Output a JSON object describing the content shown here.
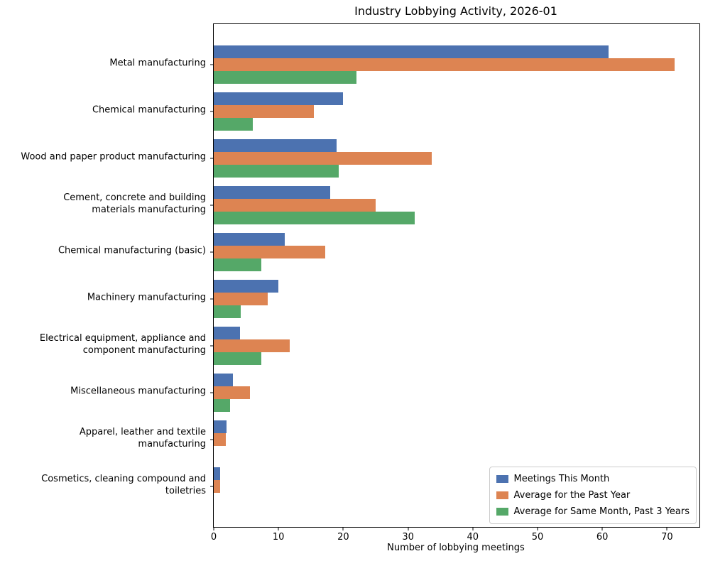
{
  "title": "Industry Lobbying Activity, 2026-01",
  "chart_data": {
    "type": "bar",
    "orientation": "horizontal",
    "title": "Industry Lobbying Activity, 2026-01",
    "xlabel": "Number of lobbying meetings",
    "ylabel": "",
    "xlim": [
      0,
      75
    ],
    "xticks": [
      0,
      10,
      20,
      30,
      40,
      50,
      60,
      70
    ],
    "grid": false,
    "legend_position": "lower right",
    "background_color": "#ffffff",
    "categories": [
      "Metal manufacturing",
      "Chemical manufacturing",
      "Wood and paper product manufacturing",
      "Cement, concrete and building\nmaterials manufacturing",
      "Chemical manufacturing (basic)",
      "Machinery manufacturing",
      "Electrical equipment, appliance and\ncomponent manufacturing",
      "Miscellaneous manufacturing",
      "Apparel, leather and textile\nmanufacturing",
      "Cosmetics, cleaning compound and\ntoiletries"
    ],
    "series": [
      {
        "name": "Meetings This Month",
        "color": "#4C72B0",
        "values": [
          61,
          20,
          19,
          18,
          11,
          10,
          4,
          3,
          2,
          1
        ]
      },
      {
        "name": "Average for the Past Year",
        "color": "#DD8452",
        "values": [
          71.2,
          15.5,
          33.7,
          25.0,
          17.2,
          8.3,
          11.7,
          5.6,
          1.9,
          1.0
        ]
      },
      {
        "name": "Average for Same Month, Past 3 Years",
        "color": "#55A868",
        "values": [
          22.0,
          6.0,
          19.3,
          31.0,
          7.3,
          4.2,
          7.3,
          2.5,
          0,
          0
        ]
      }
    ]
  }
}
